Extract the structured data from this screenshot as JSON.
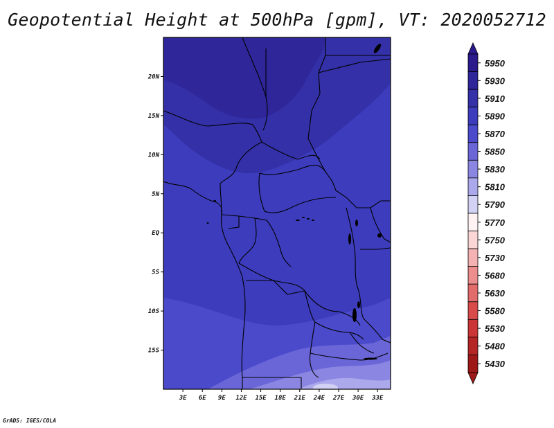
{
  "title": "Geopotential Height at 500hPa [gpm], VT: 2020052712",
  "credit": "GrADS: IGES/COLA",
  "map": {
    "lon_range": [
      0,
      35
    ],
    "lat_range": [
      -20,
      25
    ],
    "lon_ticks": [
      {
        "value": 3,
        "label": "3E"
      },
      {
        "value": 6,
        "label": "6E"
      },
      {
        "value": 9,
        "label": "9E"
      },
      {
        "value": 12,
        "label": "12E"
      },
      {
        "value": 15,
        "label": "15E"
      },
      {
        "value": 18,
        "label": "18E"
      },
      {
        "value": 21,
        "label": "21E"
      },
      {
        "value": 24,
        "label": "24E"
      },
      {
        "value": 27,
        "label": "27E"
      },
      {
        "value": 30,
        "label": "30E"
      },
      {
        "value": 33,
        "label": "33E"
      }
    ],
    "lat_ticks": [
      {
        "value": 20,
        "label": "20N"
      },
      {
        "value": 15,
        "label": "15N"
      },
      {
        "value": 10,
        "label": "10N"
      },
      {
        "value": 5,
        "label": "5N"
      },
      {
        "value": 0,
        "label": "EQ"
      },
      {
        "value": -5,
        "label": "5S"
      },
      {
        "value": -10,
        "label": "10S"
      },
      {
        "value": -15,
        "label": "15S"
      }
    ],
    "field_description": "500hPa geopotential height over equatorial/central Africa; highest (~5890-5910 gpm) in the north and northeast, lowering to ~5850-5810 gpm in the far south-east."
  },
  "colorbar": {
    "levels": [
      {
        "label": "5950",
        "color": "#2a1a8c"
      },
      {
        "label": "5930",
        "color": "#2f269a"
      },
      {
        "label": "5910",
        "color": "#3430a8"
      },
      {
        "label": "5890",
        "color": "#3c3cbc"
      },
      {
        "label": "5870",
        "color": "#4a4acb"
      },
      {
        "label": "5850",
        "color": "#6a66d8"
      },
      {
        "label": "5830",
        "color": "#8b86e2"
      },
      {
        "label": "5810",
        "color": "#aba8ec"
      },
      {
        "label": "5790",
        "color": "#d3d2f5"
      },
      {
        "label": "5770",
        "color": "#fff2f2"
      },
      {
        "label": "5750",
        "color": "#fbd6d6"
      },
      {
        "label": "5730",
        "color": "#f5b2b2"
      },
      {
        "label": "5680",
        "color": "#ec8e8e"
      },
      {
        "label": "5630",
        "color": "#e26c6c"
      },
      {
        "label": "5580",
        "color": "#d94b4b"
      },
      {
        "label": "5530",
        "color": "#cc3535"
      },
      {
        "label": "5480",
        "color": "#b52525"
      },
      {
        "label": "5430",
        "color": "#9e1818"
      }
    ],
    "top_arrow_color": "#2a1a8c",
    "bottom_arrow_color": "#9e1818"
  }
}
